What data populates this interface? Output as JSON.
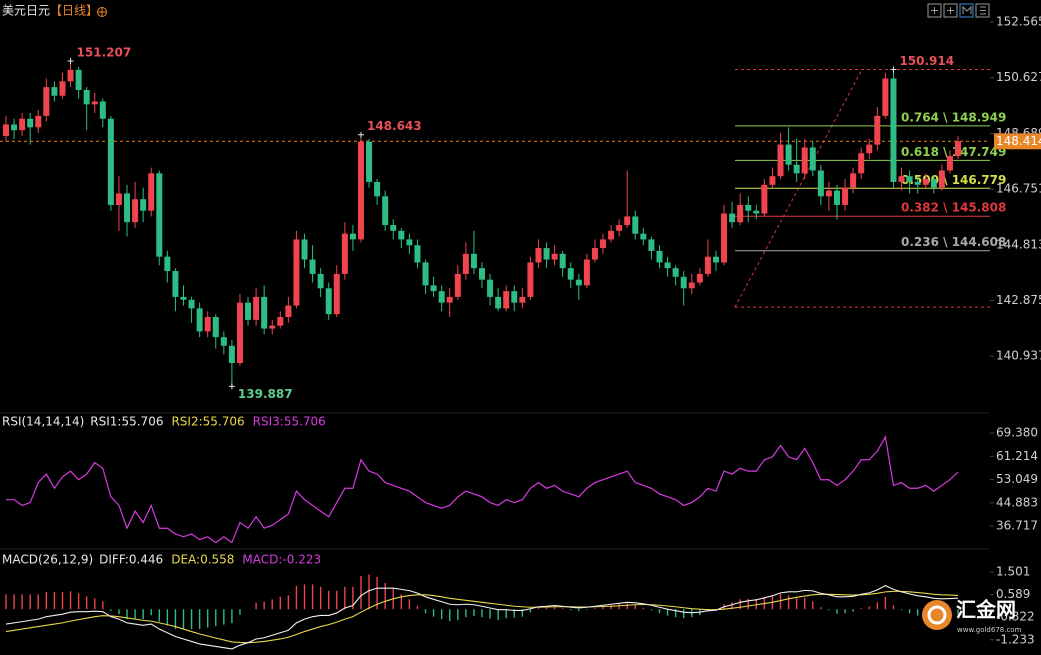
{
  "chart_data": [
    {
      "type": "candlestick",
      "title": "美元日元",
      "period": "【日线】",
      "up_color": "#f0444f",
      "down_color": "#2ebd85",
      "open": [
        148.6,
        149.0,
        148.8,
        149.2,
        148.9,
        149.3,
        150.3,
        150.0,
        150.5,
        150.9,
        150.2,
        149.7,
        149.8,
        149.2,
        146.2,
        146.6,
        145.6,
        146.4,
        146.0,
        147.3,
        144.4,
        143.9,
        143.0,
        142.9,
        142.6,
        141.8,
        142.3,
        141.6,
        141.3,
        140.7,
        142.8,
        142.2,
        143.0,
        141.9,
        142.0,
        142.3,
        142.7,
        145.0,
        144.3,
        143.8,
        143.3,
        142.4,
        143.8,
        145.2,
        145.0,
        148.4,
        147.0,
        146.5,
        145.5,
        145.3,
        145.0,
        144.8,
        144.2,
        143.4,
        143.2,
        142.8,
        143.0,
        143.8,
        144.5,
        144.0,
        143.6,
        143.0,
        142.6,
        143.2,
        142.8,
        143.0,
        144.2,
        144.7,
        144.3,
        144.5,
        144.0,
        143.6,
        143.4,
        144.3,
        144.7,
        145.0,
        145.3,
        145.5,
        145.8,
        145.2,
        145.0,
        144.6,
        144.2,
        144.0,
        143.7,
        143.3,
        143.5,
        143.8,
        144.4,
        144.2,
        145.9,
        145.6,
        146.2,
        146.0,
        145.9,
        146.9,
        147.2,
        148.3,
        147.6,
        147.3,
        148.2,
        147.4,
        146.5,
        146.7,
        146.2,
        146.8,
        147.3,
        148.0,
        148.3,
        149.3,
        150.6,
        147.0,
        147.2,
        147.0,
        146.9,
        147.1,
        146.8,
        147.4,
        147.9
      ],
      "high": [
        149.3,
        149.2,
        149.4,
        149.4,
        149.5,
        150.6,
        150.5,
        150.8,
        151.207,
        151.0,
        150.3,
        150.1,
        149.9,
        149.3,
        147.2,
        146.9,
        147.0,
        146.8,
        147.5,
        147.4,
        144.6,
        144.0,
        143.4,
        143.0,
        142.8,
        142.5,
        142.4,
        141.8,
        141.5,
        143.1,
        143.0,
        143.3,
        143.4,
        142.2,
        142.5,
        143.0,
        145.3,
        145.2,
        144.8,
        144.0,
        143.5,
        144.1,
        145.6,
        145.5,
        148.643,
        148.5,
        147.1,
        146.7,
        145.7,
        145.4,
        145.2,
        145.0,
        144.3,
        143.7,
        143.4,
        143.3,
        144.1,
        144.9,
        145.3,
        144.2,
        143.8,
        143.3,
        143.4,
        143.4,
        143.3,
        144.4,
        145.0,
        144.9,
        144.8,
        144.6,
        144.2,
        143.8,
        144.5,
        145.0,
        145.2,
        145.5,
        145.7,
        147.4,
        146.0,
        145.4,
        145.1,
        144.8,
        144.4,
        144.1,
        143.9,
        143.8,
        144.0,
        145.0,
        144.6,
        146.2,
        146.3,
        146.6,
        146.5,
        146.2,
        147.1,
        147.5,
        148.7,
        148.9,
        148.5,
        148.5,
        148.4,
        147.6,
        147.0,
        146.9,
        147.1,
        147.5,
        148.2,
        148.5,
        149.6,
        150.8,
        150.914,
        147.5,
        147.4,
        147.2,
        147.3,
        147.2,
        147.6,
        148.1,
        148.6
      ],
      "low": [
        148.4,
        148.5,
        148.6,
        148.3,
        148.7,
        149.1,
        149.8,
        149.9,
        150.3,
        149.9,
        148.8,
        149.4,
        148.9,
        146.0,
        145.3,
        145.1,
        145.4,
        145.6,
        145.8,
        144.1,
        143.5,
        142.5,
        142.7,
        142.1,
        141.6,
        141.6,
        141.2,
        141.0,
        139.887,
        140.6,
        142.0,
        142.0,
        141.7,
        141.7,
        141.9,
        142.1,
        142.6,
        144.0,
        143.5,
        143.0,
        142.2,
        142.3,
        143.6,
        144.6,
        144.9,
        146.8,
        146.2,
        145.3,
        145.0,
        144.7,
        144.5,
        144.0,
        143.1,
        143.0,
        142.5,
        142.3,
        142.9,
        143.6,
        143.8,
        143.3,
        142.7,
        142.5,
        142.5,
        142.5,
        142.6,
        142.9,
        144.0,
        144.0,
        144.1,
        143.7,
        143.3,
        142.9,
        143.3,
        144.2,
        144.5,
        144.9,
        145.1,
        145.4,
        145.0,
        144.8,
        144.3,
        144.0,
        143.7,
        143.4,
        142.7,
        143.1,
        143.4,
        143.7,
        143.9,
        144.1,
        145.4,
        145.5,
        145.6,
        145.7,
        145.8,
        146.8,
        147.1,
        147.4,
        147.0,
        147.1,
        147.2,
        146.2,
        146.0,
        145.7,
        146.0,
        146.6,
        147.1,
        147.8,
        148.1,
        149.2,
        146.8,
        146.7,
        146.6,
        146.6,
        146.8,
        146.6,
        146.7,
        147.3,
        147.8
      ],
      "close": [
        149.0,
        148.8,
        149.2,
        148.9,
        149.3,
        150.3,
        150.0,
        150.5,
        150.9,
        150.2,
        149.7,
        149.8,
        149.2,
        146.2,
        146.6,
        145.6,
        146.4,
        146.0,
        147.3,
        144.4,
        143.9,
        143.0,
        142.9,
        142.6,
        141.8,
        142.3,
        141.6,
        141.3,
        140.7,
        142.8,
        142.2,
        143.0,
        141.9,
        142.0,
        142.3,
        142.7,
        145.0,
        144.3,
        143.8,
        143.3,
        142.4,
        143.8,
        145.2,
        145.0,
        148.4,
        147.0,
        146.5,
        145.5,
        145.3,
        145.0,
        144.8,
        144.2,
        143.4,
        143.2,
        142.8,
        143.0,
        143.8,
        144.5,
        144.0,
        143.6,
        143.0,
        142.6,
        143.2,
        142.8,
        143.0,
        144.2,
        144.7,
        144.3,
        144.5,
        144.0,
        143.6,
        143.4,
        144.3,
        144.7,
        145.0,
        145.3,
        145.5,
        145.8,
        145.2,
        145.0,
        144.6,
        144.2,
        144.0,
        143.7,
        143.3,
        143.5,
        143.8,
        144.4,
        144.2,
        145.9,
        145.6,
        146.2,
        146.0,
        145.9,
        146.9,
        147.2,
        148.3,
        147.6,
        147.3,
        148.2,
        147.4,
        146.5,
        146.7,
        146.2,
        146.8,
        147.3,
        148.0,
        148.3,
        149.3,
        150.6,
        147.0,
        147.2,
        147.0,
        146.9,
        147.1,
        146.8,
        147.4,
        147.9,
        148.414
      ],
      "ylim": [
        139.065,
        152.983
      ],
      "yticks": [
        152.565,
        150.627,
        148.689,
        146.751,
        144.813,
        142.875,
        140.937
      ],
      "last_price": 148.414,
      "last_price_color": "#e8862a",
      "fib": {
        "range": [
          142.644,
          150.914
        ],
        "range_color": "#d9363e",
        "levels": [
          {
            "label": "0.764 \\ 148.949",
            "value": 148.949,
            "color": "#8fd14f"
          },
          {
            "label": "0.618 \\ 147.749",
            "value": 147.749,
            "color": "#8fd14f"
          },
          {
            "label": "0.500 \\ 146.779",
            "value": 146.779,
            "color": "#d4e04a"
          },
          {
            "label": "0.382 \\ 145.808",
            "value": 145.808,
            "color": "#e0383c"
          },
          {
            "label": "0.236 \\ 144.608",
            "value": 144.608,
            "color": "#a8a8a8"
          }
        ]
      }
    },
    {
      "type": "line",
      "title": "RSI(14,14,14)",
      "legend": [
        {
          "label": "RSI1:55.706",
          "color": "#e8e8e8"
        },
        {
          "label": "RSI2:55.706",
          "color": "#e8d84a"
        },
        {
          "label": "RSI3:55.706",
          "color": "#d63be0"
        }
      ],
      "series": [
        {
          "color": "#d63be0",
          "values": [
            46,
            46,
            44,
            45,
            52,
            55,
            50,
            54,
            56,
            53,
            55,
            59,
            57,
            47,
            44,
            36,
            42,
            38,
            44,
            36,
            36,
            34,
            33,
            34,
            32,
            33,
            31,
            33,
            31,
            38,
            36,
            40,
            36,
            37,
            39,
            41,
            49,
            46,
            44,
            42,
            40,
            45,
            50,
            50,
            60,
            56,
            55,
            52,
            51,
            50,
            49,
            47,
            45,
            44,
            43,
            44,
            47,
            49,
            48,
            47,
            45,
            44,
            46,
            45,
            46,
            50,
            52,
            50,
            51,
            49,
            48,
            47,
            50,
            52,
            53,
            54,
            55,
            56,
            52,
            51,
            50,
            48,
            47,
            46,
            44,
            45,
            47,
            50,
            49,
            56,
            55,
            57,
            56,
            56,
            60,
            61,
            65,
            61,
            60,
            64,
            59,
            53,
            53,
            51,
            53,
            56,
            60,
            60,
            63,
            68,
            51,
            52,
            50,
            50,
            51,
            49,
            51,
            53,
            55.706
          ]
        }
      ],
      "ylim": [
        30.12,
        71.83
      ],
      "yticks": [
        {
          "value": 69.38,
          "label": "69.380"
        },
        61.214,
        53.049,
        44.883,
        36.717
      ]
    },
    {
      "type": "macd",
      "title": "MACD(26,12,9)",
      "legend": [
        {
          "label": "DIFF:0.446",
          "color": "#e8e8e8"
        },
        {
          "label": "DEA:0.558",
          "color": "#e8d84a"
        },
        {
          "label": "MACD:-0.223",
          "color": "#d63be0"
        }
      ],
      "diff": {
        "color": "#f0f0f0",
        "values": [
          -0.6,
          -0.55,
          -0.5,
          -0.45,
          -0.4,
          -0.3,
          -0.25,
          -0.2,
          -0.12,
          -0.1,
          -0.1,
          -0.08,
          -0.1,
          -0.3,
          -0.4,
          -0.55,
          -0.6,
          -0.65,
          -0.6,
          -0.8,
          -0.95,
          -1.1,
          -1.2,
          -1.3,
          -1.4,
          -1.45,
          -1.5,
          -1.55,
          -1.6,
          -1.45,
          -1.35,
          -1.2,
          -1.15,
          -1.05,
          -0.95,
          -0.85,
          -0.55,
          -0.4,
          -0.3,
          -0.25,
          -0.25,
          -0.15,
          0.05,
          0.15,
          0.55,
          0.75,
          0.85,
          0.85,
          0.85,
          0.8,
          0.75,
          0.65,
          0.5,
          0.4,
          0.3,
          0.2,
          0.18,
          0.2,
          0.18,
          0.12,
          0.05,
          -0.02,
          -0.02,
          -0.05,
          -0.05,
          0.02,
          0.1,
          0.12,
          0.15,
          0.12,
          0.08,
          0.05,
          0.08,
          0.12,
          0.16,
          0.2,
          0.24,
          0.28,
          0.26,
          0.22,
          0.16,
          0.08,
          0.0,
          -0.06,
          -0.12,
          -0.14,
          -0.12,
          -0.06,
          -0.04,
          0.1,
          0.18,
          0.28,
          0.34,
          0.38,
          0.46,
          0.54,
          0.66,
          0.7,
          0.7,
          0.76,
          0.74,
          0.64,
          0.58,
          0.5,
          0.5,
          0.52,
          0.6,
          0.66,
          0.78,
          0.95,
          0.8,
          0.7,
          0.62,
          0.54,
          0.5,
          0.44,
          0.42,
          0.43,
          0.446
        ]
      },
      "dea": {
        "color": "#e8d84a",
        "values": [
          -0.9,
          -0.85,
          -0.8,
          -0.75,
          -0.7,
          -0.65,
          -0.6,
          -0.55,
          -0.48,
          -0.42,
          -0.36,
          -0.3,
          -0.26,
          -0.27,
          -0.3,
          -0.35,
          -0.4,
          -0.45,
          -0.48,
          -0.55,
          -0.62,
          -0.7,
          -0.8,
          -0.9,
          -1.0,
          -1.08,
          -1.16,
          -1.24,
          -1.32,
          -1.34,
          -1.35,
          -1.33,
          -1.3,
          -1.25,
          -1.2,
          -1.13,
          -1.02,
          -0.9,
          -0.8,
          -0.7,
          -0.62,
          -0.52,
          -0.4,
          -0.3,
          -0.12,
          0.05,
          0.2,
          0.32,
          0.42,
          0.5,
          0.55,
          0.58,
          0.58,
          0.55,
          0.5,
          0.44,
          0.4,
          0.36,
          0.32,
          0.28,
          0.24,
          0.2,
          0.16,
          0.12,
          0.1,
          0.08,
          0.08,
          0.09,
          0.1,
          0.1,
          0.1,
          0.09,
          0.09,
          0.1,
          0.11,
          0.12,
          0.14,
          0.16,
          0.18,
          0.19,
          0.18,
          0.16,
          0.13,
          0.1,
          0.06,
          0.02,
          0.0,
          -0.02,
          -0.02,
          0.0,
          0.04,
          0.08,
          0.13,
          0.18,
          0.23,
          0.28,
          0.35,
          0.42,
          0.48,
          0.53,
          0.58,
          0.6,
          0.6,
          0.59,
          0.58,
          0.57,
          0.58,
          0.6,
          0.64,
          0.7,
          0.72,
          0.72,
          0.7,
          0.67,
          0.64,
          0.6,
          0.58,
          0.57,
          0.558
        ]
      },
      "histogram": {
        "up_color": "#f0444f",
        "down_color": "#2ebd85",
        "values": [
          0.6,
          0.6,
          0.6,
          0.6,
          0.6,
          0.7,
          0.7,
          0.7,
          0.72,
          0.64,
          0.52,
          0.44,
          0.32,
          -0.06,
          -0.2,
          -0.4,
          -0.4,
          -0.4,
          -0.24,
          -0.5,
          -0.66,
          -0.8,
          -0.8,
          -0.8,
          -0.8,
          -0.74,
          -0.68,
          -0.62,
          -0.56,
          -0.22,
          0,
          0.26,
          0.3,
          0.4,
          0.5,
          0.56,
          0.94,
          1.0,
          1.0,
          0.9,
          0.74,
          0.74,
          0.9,
          0.9,
          1.34,
          1.4,
          1.3,
          1.06,
          0.86,
          0.6,
          0.4,
          0.14,
          -0.16,
          -0.3,
          -0.4,
          -0.48,
          -0.44,
          -0.32,
          -0.28,
          -0.32,
          -0.38,
          -0.44,
          -0.36,
          -0.34,
          -0.3,
          -0.12,
          0.04,
          0.06,
          0.1,
          0.04,
          -0.04,
          -0.08,
          -0.02,
          0.04,
          0.1,
          0.16,
          0.2,
          0.24,
          0.16,
          0.06,
          -0.04,
          -0.16,
          -0.26,
          -0.32,
          -0.36,
          -0.32,
          -0.24,
          -0.08,
          -0.04,
          0.2,
          0.28,
          0.4,
          0.42,
          0.4,
          0.46,
          0.52,
          0.62,
          0.56,
          0.44,
          0.46,
          0.32,
          0.08,
          -0.04,
          -0.18,
          -0.16,
          -0.1,
          0.04,
          0.12,
          0.28,
          0.5,
          0.16,
          -0.04,
          -0.16,
          -0.26,
          -0.28,
          -0.32,
          -0.32,
          -0.28,
          -0.223
        ]
      },
      "ylim": [
        -1.846,
        1.864
      ],
      "yticks": [
        1.501,
        0.589,
        -0.322,
        -1.233
      ]
    }
  ],
  "watermark": {
    "name": "汇金网",
    "url": "www.gold678.com"
  }
}
